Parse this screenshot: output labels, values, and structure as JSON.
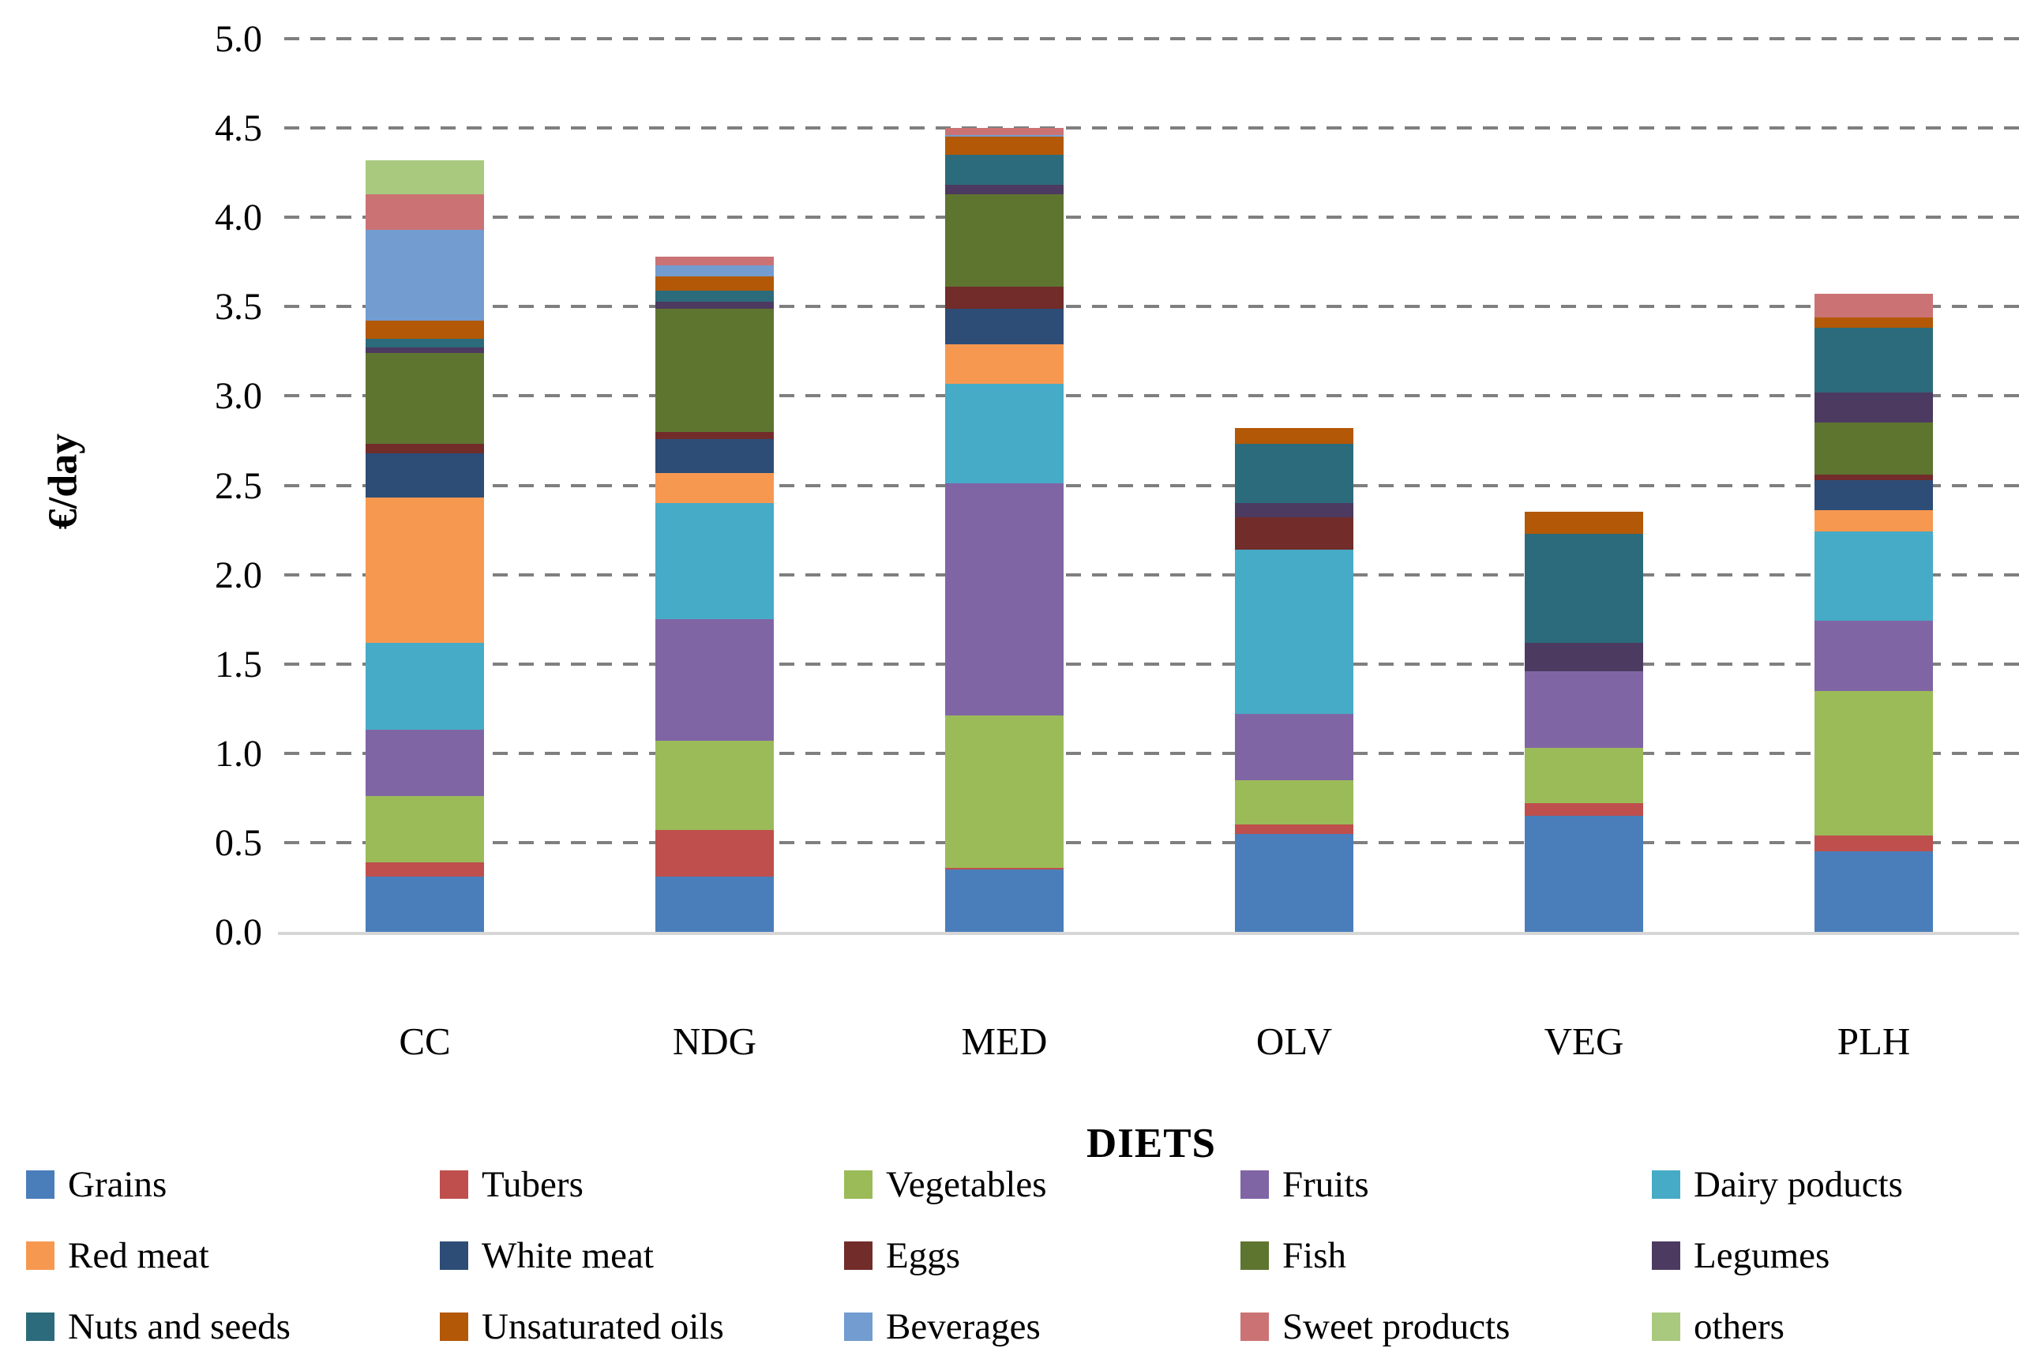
{
  "chart_data": {
    "type": "bar",
    "stacked": true,
    "title": "",
    "xlabel": "DIETS",
    "ylabel": "€/day",
    "categories": [
      "CC",
      "NDG",
      "MED",
      "OLV",
      "VEG",
      "PLH"
    ],
    "ylim": [
      0.0,
      5.0
    ],
    "ytick_step": 0.5,
    "ytick_labels": [
      "0.0",
      "0.5",
      "1.0",
      "1.5",
      "2.0",
      "2.5",
      "3.0",
      "3.5",
      "4.0",
      "4.5",
      "5.0"
    ],
    "grid": "horizontal-dashed",
    "gridline_color": "#7f7f7f",
    "axis_line_color": "#d6d6d6",
    "legend_position": "bottom",
    "legend_rows": 3,
    "legend_columns": 5,
    "series": [
      {
        "name": "Grains",
        "color": "#4A7EBB",
        "values": [
          0.31,
          0.31,
          0.35,
          0.55,
          0.65,
          0.45
        ]
      },
      {
        "name": "Tubers",
        "color": "#BE4F4C",
        "values": [
          0.08,
          0.26,
          0.01,
          0.05,
          0.07,
          0.09
        ]
      },
      {
        "name": "Vegetables",
        "color": "#9BBB59",
        "values": [
          0.37,
          0.5,
          0.85,
          0.25,
          0.31,
          0.81
        ]
      },
      {
        "name": "Fruits",
        "color": "#8065A5",
        "values": [
          0.37,
          0.68,
          1.3,
          0.37,
          0.43,
          0.39
        ]
      },
      {
        "name": "Dairy poducts",
        "color": "#46ABC6",
        "values": [
          0.49,
          0.65,
          0.56,
          0.92,
          0.0,
          0.5
        ]
      },
      {
        "name": "Red meat",
        "color": "#F79850",
        "values": [
          0.81,
          0.17,
          0.22,
          0.0,
          0.0,
          0.12
        ]
      },
      {
        "name": "White meat",
        "color": "#2D4D76",
        "values": [
          0.25,
          0.19,
          0.2,
          0.0,
          0.0,
          0.17
        ]
      },
      {
        "name": "Eggs",
        "color": "#722C2A",
        "values": [
          0.05,
          0.04,
          0.12,
          0.18,
          0.0,
          0.03
        ]
      },
      {
        "name": "Fish",
        "color": "#5E7530",
        "values": [
          0.51,
          0.69,
          0.52,
          0.0,
          0.0,
          0.29
        ]
      },
      {
        "name": "Legumes",
        "color": "#4C3A60",
        "values": [
          0.03,
          0.04,
          0.05,
          0.08,
          0.16,
          0.17
        ]
      },
      {
        "name": "Nuts and seeds",
        "color": "#2C6B7B",
        "values": [
          0.05,
          0.06,
          0.17,
          0.33,
          0.61,
          0.36
        ]
      },
      {
        "name": "Unsaturated oils",
        "color": "#B35806",
        "values": [
          0.1,
          0.08,
          0.1,
          0.09,
          0.12,
          0.06
        ]
      },
      {
        "name": "Beverages",
        "color": "#739CD0",
        "values": [
          0.51,
          0.06,
          0.01,
          0.0,
          0.0,
          0.0
        ]
      },
      {
        "name": "Sweet products",
        "color": "#CB7374",
        "values": [
          0.2,
          0.05,
          0.04,
          0.0,
          0.0,
          0.13
        ]
      },
      {
        "name": "others",
        "color": "#A9C97E",
        "values": [
          0.19,
          0.0,
          0.0,
          0.0,
          0.0,
          0.0
        ]
      }
    ],
    "bar_totals": [
      4.32,
      3.78,
      4.5,
      2.82,
      2.35,
      3.57
    ]
  }
}
